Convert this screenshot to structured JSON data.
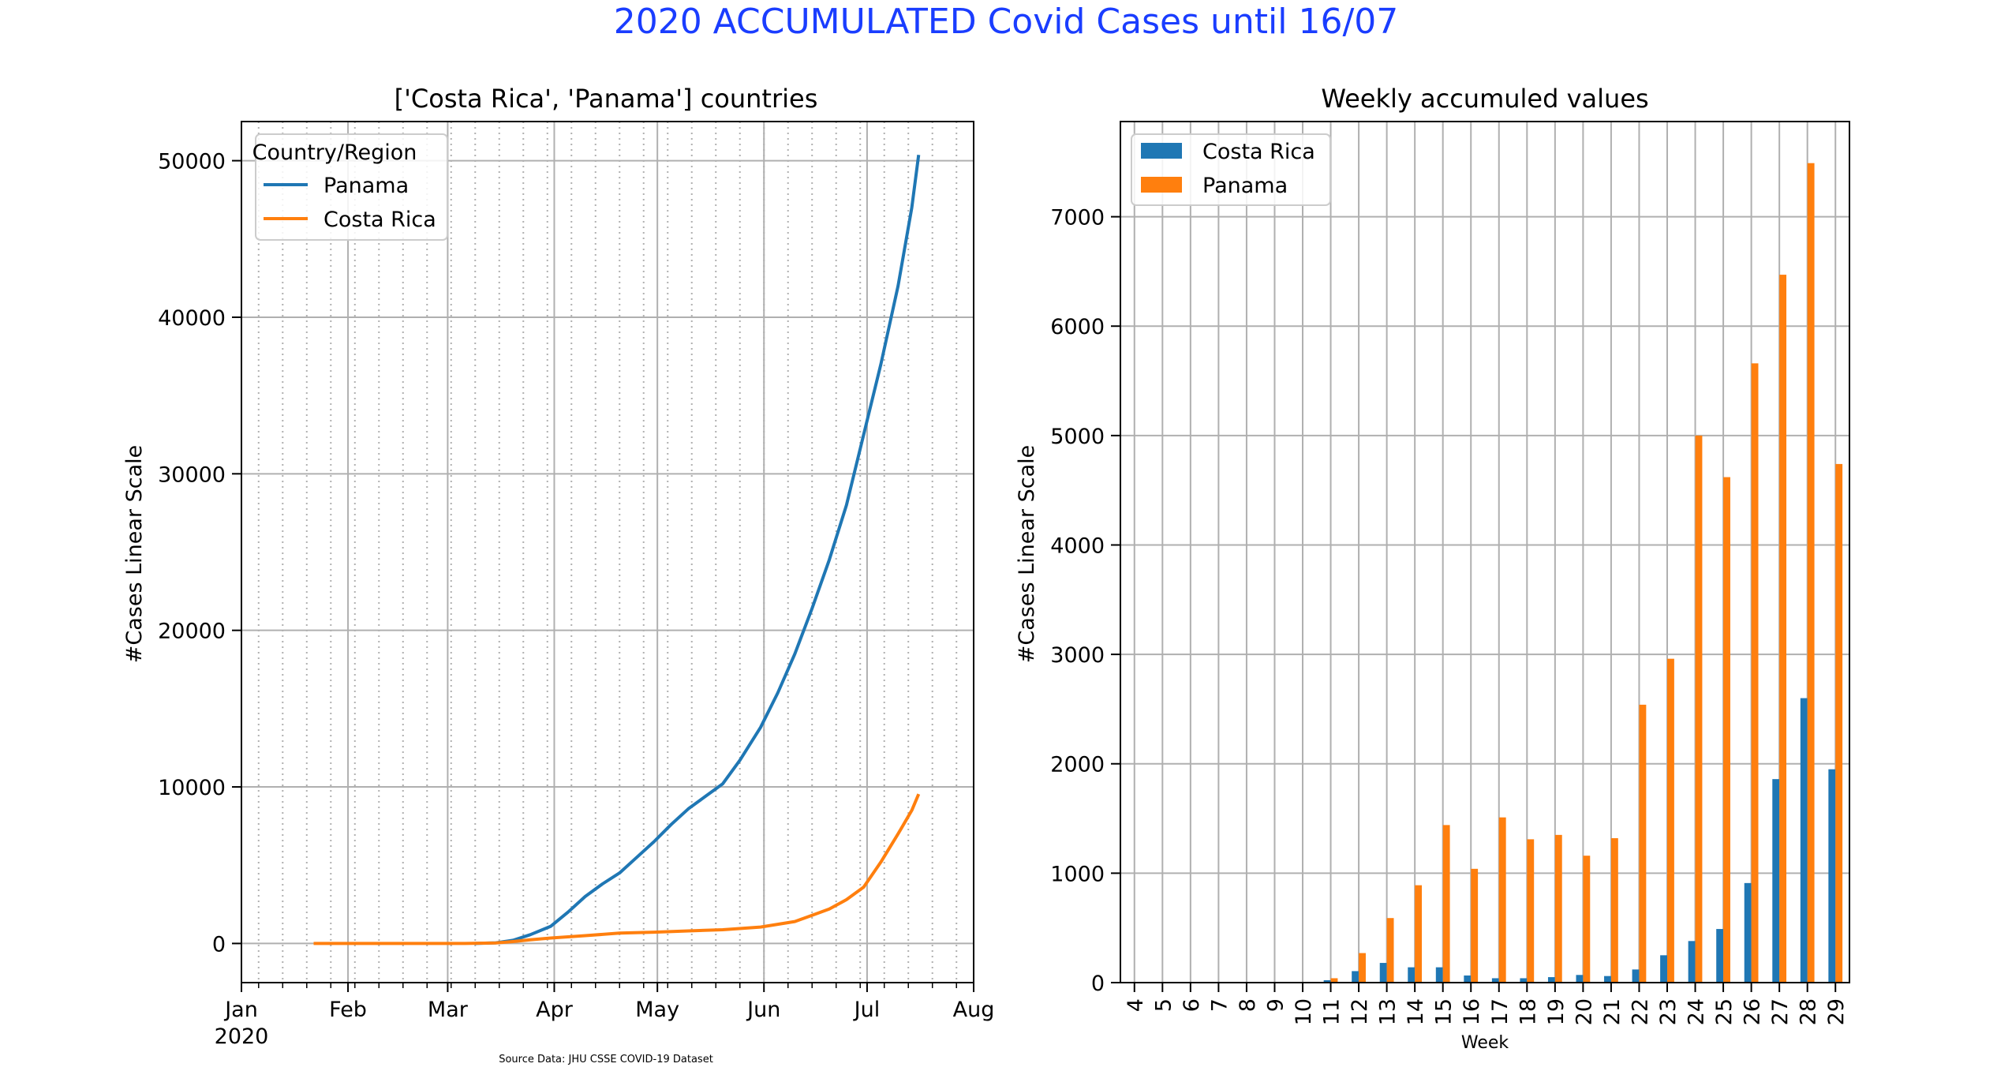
{
  "figure": {
    "suptitle": "2020 ACCUMULATED Covid Cases until 16/07",
    "source_note": "Source Data: JHU CSSE COVID-19 Dataset",
    "suptitle_color": "#1a3dff"
  },
  "colors": {
    "panama": "#1f77b4",
    "costa_rica": "#ff7f0e",
    "grid": "#b0b0b0"
  },
  "chart_data": [
    {
      "type": "line",
      "title": "['Costa Rica', 'Panama'] countries",
      "xlabel": "",
      "ylabel": "#Cases Linear Scale",
      "x_ticks": [
        "Jan\n2020",
        "Feb",
        "Mar",
        "Apr",
        "May",
        "Jun",
        "Jul",
        "Aug"
      ],
      "x_range": [
        "2020-01-01",
        "2020-08-01"
      ],
      "ylim": [
        -2500,
        52500
      ],
      "y_ticks": [
        0,
        10000,
        20000,
        30000,
        40000,
        50000
      ],
      "grid": true,
      "legend": {
        "title": "Country/Region",
        "position": "top-left"
      },
      "series": [
        {
          "name": "Panama",
          "color": "#1f77b4",
          "points": [
            [
              "2020-03-09",
              0
            ],
            [
              "2020-03-15",
              43
            ],
            [
              "2020-03-20",
              200
            ],
            [
              "2020-03-25",
              560
            ],
            [
              "2020-03-31",
              1100
            ],
            [
              "2020-04-05",
              2000
            ],
            [
              "2020-04-10",
              3000
            ],
            [
              "2020-04-15",
              3800
            ],
            [
              "2020-04-20",
              4500
            ],
            [
              "2020-04-25",
              5500
            ],
            [
              "2020-04-30",
              6500
            ],
            [
              "2020-05-05",
              7600
            ],
            [
              "2020-05-10",
              8600
            ],
            [
              "2020-05-15",
              9400
            ],
            [
              "2020-05-20",
              10200
            ],
            [
              "2020-05-25",
              11700
            ],
            [
              "2020-05-31",
              13800
            ],
            [
              "2020-06-05",
              16000
            ],
            [
              "2020-06-10",
              18500
            ],
            [
              "2020-06-15",
              21400
            ],
            [
              "2020-06-20",
              24500
            ],
            [
              "2020-06-25",
              28000
            ],
            [
              "2020-06-30",
              32500
            ],
            [
              "2020-07-05",
              37000
            ],
            [
              "2020-07-10",
              42000
            ],
            [
              "2020-07-14",
              47000
            ],
            [
              "2020-07-16",
              50373
            ]
          ]
        },
        {
          "name": "Costa Rica",
          "color": "#ff7f0e",
          "points": [
            [
              "2020-01-22",
              0
            ],
            [
              "2020-03-06",
              1
            ],
            [
              "2020-03-15",
              30
            ],
            [
              "2020-03-20",
              120
            ],
            [
              "2020-03-25",
              230
            ],
            [
              "2020-03-31",
              350
            ],
            [
              "2020-04-10",
              500
            ],
            [
              "2020-04-20",
              660
            ],
            [
              "2020-04-30",
              720
            ],
            [
              "2020-05-10",
              800
            ],
            [
              "2020-05-20",
              880
            ],
            [
              "2020-05-31",
              1050
            ],
            [
              "2020-06-10",
              1400
            ],
            [
              "2020-06-15",
              1800
            ],
            [
              "2020-06-20",
              2200
            ],
            [
              "2020-06-25",
              2800
            ],
            [
              "2020-06-30",
              3600
            ],
            [
              "2020-07-05",
              5200
            ],
            [
              "2020-07-10",
              7000
            ],
            [
              "2020-07-14",
              8500
            ],
            [
              "2020-07-16",
              9546
            ]
          ]
        }
      ]
    },
    {
      "type": "bar",
      "title": "Weekly accumuled values",
      "xlabel": "Week",
      "ylabel": "#Cases Linear Scale",
      "categories": [
        "4",
        "5",
        "6",
        "7",
        "8",
        "9",
        "10",
        "11",
        "12",
        "13",
        "14",
        "15",
        "16",
        "17",
        "18",
        "19",
        "20",
        "21",
        "22",
        "23",
        "24",
        "25",
        "26",
        "27",
        "28",
        "29"
      ],
      "ylim": [
        0,
        7870
      ],
      "y_ticks": [
        0,
        1000,
        2000,
        3000,
        4000,
        5000,
        6000,
        7000
      ],
      "grid": true,
      "legend": {
        "position": "top-left"
      },
      "series": [
        {
          "name": "Costa Rica",
          "color": "#1f77b4",
          "values": [
            0,
            0,
            0,
            0,
            0,
            0,
            1,
            22,
            105,
            180,
            140,
            140,
            65,
            40,
            40,
            50,
            70,
            60,
            120,
            250,
            380,
            490,
            910,
            1860,
            2600,
            1950
          ]
        },
        {
          "name": "Panama",
          "color": "#ff7f0e",
          "values": [
            0,
            0,
            0,
            0,
            0,
            0,
            1,
            40,
            270,
            590,
            890,
            1440,
            1040,
            1510,
            1310,
            1350,
            1160,
            1320,
            2540,
            2960,
            5000,
            4620,
            5660,
            6470,
            7490,
            4740
          ]
        }
      ]
    }
  ]
}
